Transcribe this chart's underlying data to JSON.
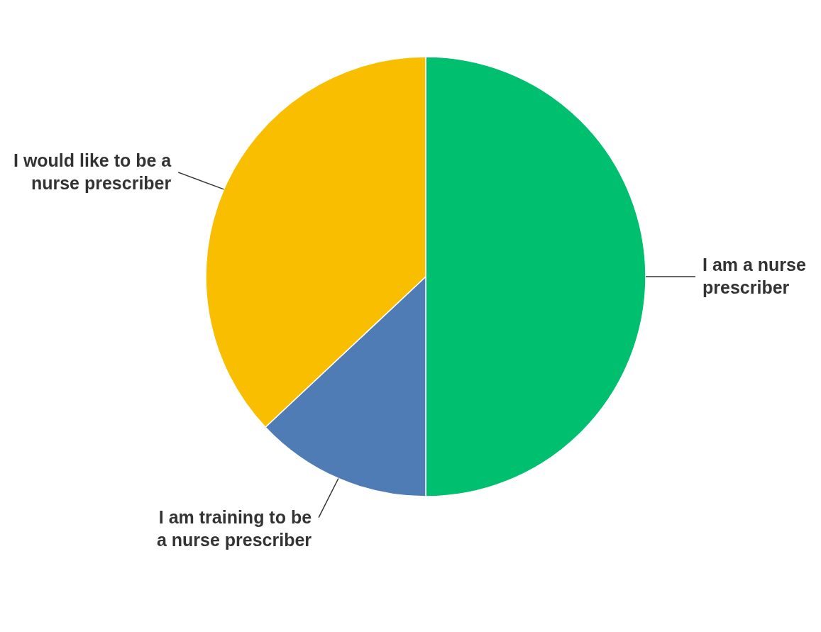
{
  "chart_data": {
    "type": "pie",
    "categories": [
      "I am a nurse prescriber",
      "I am training to be a nurse prescriber",
      "I would like to be a nurse prescriber"
    ],
    "values": [
      50,
      13,
      37
    ],
    "colors": [
      "#00bf6f",
      "#507cb6",
      "#f9be00"
    ]
  }
}
